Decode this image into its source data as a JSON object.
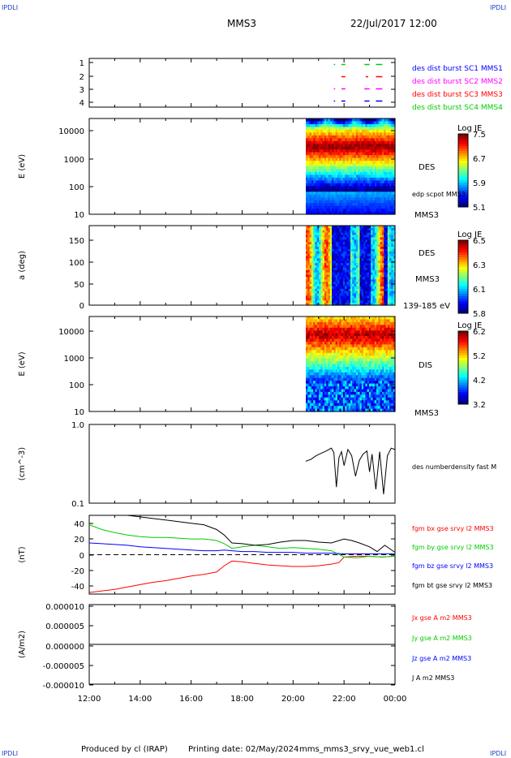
{
  "header": {
    "corner_left": "IPDLI",
    "corner_right": "IPDLI",
    "spacecraft": "MMS3",
    "datetime": "22/Jul/2017 12:00"
  },
  "footer": {
    "produced": "Produced by cl (IRAP)",
    "printing": "Printing date: 02/May/2024",
    "script": "mms_mms3_srvy_vue_web1.cl",
    "corner_left": "IPDLI",
    "corner_right": "IPDLI"
  },
  "x_axis": {
    "ticks": [
      "12:00",
      "14:00",
      "16:00",
      "18:00",
      "20:00",
      "22:00",
      "00:00"
    ]
  },
  "colors": {
    "blue": "#0000ff",
    "magenta": "#ff00ff",
    "red": "#ff0000",
    "green": "#00cc00",
    "black": "#000000"
  },
  "chart_data": [
    {
      "type": "scatter",
      "ylim": [
        0.5,
        4.5
      ],
      "yticks": [
        "1",
        "2",
        "3",
        "4"
      ],
      "legend": [
        {
          "label": "des dist burst SC1 MMS1",
          "color": "#0000ff"
        },
        {
          "label": "des dist burst SC2 MMS2",
          "color": "#ff00ff"
        },
        {
          "label": "des dist burst SC3 MMS3",
          "color": "#ff0000"
        },
        {
          "label": "des dist burst SC4 MMS4",
          "color": "#00cc00"
        }
      ],
      "intervals": [
        {
          "y": 4,
          "color": "#00cc00",
          "ranges": [
            [
              21.6,
              21.65
            ],
            [
              21.9,
              22.05
            ],
            [
              22.8,
              23.0
            ],
            [
              23.25,
              23.5
            ]
          ]
        },
        {
          "y": 3,
          "color": "#ff0000",
          "ranges": [
            [
              21.9,
              22.05
            ],
            [
              22.85,
              22.95
            ],
            [
              23.25,
              23.5
            ]
          ]
        },
        {
          "y": 2,
          "color": "#ff00ff",
          "ranges": [
            [
              21.6,
              21.65
            ],
            [
              21.9,
              22.05
            ],
            [
              22.8,
              23.0
            ],
            [
              23.25,
              23.5
            ]
          ]
        },
        {
          "y": 1,
          "color": "#0000ff",
          "ranges": [
            [
              21.6,
              21.65
            ],
            [
              21.9,
              22.05
            ],
            [
              22.8,
              23.0
            ],
            [
              23.25,
              23.5
            ]
          ]
        }
      ]
    },
    {
      "type": "heatmap",
      "ylabel": "E (eV)",
      "yscale": "log",
      "ylim": [
        10,
        30000
      ],
      "yticks": [
        "10",
        "100",
        "1000",
        "10000"
      ],
      "x_range": [
        20.5,
        24.0
      ],
      "colorbar": {
        "title": "Log JE",
        "ticks": [
          "7.5",
          "6.7",
          "5.9",
          "5.1"
        ],
        "range": [
          5.1,
          7.5
        ]
      },
      "labels": [
        "DES",
        "edp scpot MMS3",
        "MMS3"
      ]
    },
    {
      "type": "heatmap",
      "ylabel": "a (deg)",
      "ylim": [
        0,
        180
      ],
      "yticks": [
        "0",
        "50",
        "100",
        "150"
      ],
      "x_range": [
        20.5,
        24.0
      ],
      "colorbar": {
        "title": "Log JE",
        "ticks": [
          "6.5",
          "6.3",
          "6.1",
          "5.8"
        ],
        "range": [
          5.8,
          6.5
        ]
      },
      "labels": [
        "DES",
        "MMS3",
        "139-185 eV"
      ]
    },
    {
      "type": "heatmap",
      "ylabel": "E (eV)",
      "yscale": "log",
      "ylim": [
        10,
        30000
      ],
      "yticks": [
        "10",
        "100",
        "1000",
        "10000"
      ],
      "x_range": [
        20.5,
        24.0
      ],
      "colorbar": {
        "title": "Log JE",
        "ticks": [
          "6.2",
          "5.2",
          "4.2",
          "3.2"
        ],
        "range": [
          3.2,
          6.2
        ]
      },
      "labels": [
        "DIS",
        "MMS3"
      ]
    },
    {
      "type": "line",
      "ylabel": "(cm^-3)",
      "yscale": "log",
      "ylim": [
        0.1,
        1.0
      ],
      "yticks": [
        "0.1",
        "1.0"
      ],
      "series": [
        {
          "name": "des numberdensity fast M",
          "color": "#000000",
          "x": [
            20.5,
            20.7,
            20.9,
            21.1,
            21.3,
            21.5,
            21.6,
            21.7,
            21.8,
            21.9,
            22.0,
            22.15,
            22.3,
            22.45,
            22.6,
            22.75,
            22.9,
            23.0,
            23.1,
            23.25,
            23.4,
            23.55,
            23.7,
            23.85,
            24.0
          ],
          "y": [
            0.34,
            0.36,
            0.4,
            0.43,
            0.46,
            0.5,
            0.44,
            0.16,
            0.38,
            0.45,
            0.3,
            0.48,
            0.4,
            0.22,
            0.35,
            0.42,
            0.46,
            0.25,
            0.42,
            0.15,
            0.45,
            0.13,
            0.4,
            0.5,
            0.48
          ]
        }
      ]
    },
    {
      "type": "line",
      "ylabel": "(nT)",
      "ylim": [
        -50,
        50
      ],
      "yticks": [
        "40",
        "20",
        "0",
        "-20",
        "-40"
      ],
      "series": [
        {
          "name": "fgm bx gse srvy l2 MMS3",
          "color": "#ff0000",
          "x": [
            12,
            12.5,
            13,
            13.5,
            14,
            14.5,
            15,
            15.5,
            16,
            16.5,
            17,
            17.3,
            17.6,
            18,
            18.5,
            19,
            19.5,
            20,
            20.5,
            21,
            21.5,
            21.8,
            22,
            22.5,
            23,
            23.5,
            24
          ],
          "y": [
            -48,
            -46,
            -44,
            -41,
            -38,
            -35,
            -33,
            -30,
            -27,
            -25,
            -22,
            -14,
            -8,
            -9,
            -11,
            -13,
            -14,
            -15,
            -15,
            -14,
            -12,
            -10,
            -3,
            -2,
            -2,
            -3,
            -2
          ]
        },
        {
          "name": "fgm by gse srvy l2 MMS3",
          "color": "#00cc00",
          "x": [
            12,
            12.5,
            13,
            13.5,
            14,
            14.5,
            15,
            15.5,
            16,
            16.5,
            17,
            17.3,
            17.6,
            18,
            18.5,
            19,
            19.5,
            20,
            20.5,
            21,
            21.5,
            22,
            22.5,
            23,
            23.5,
            24
          ],
          "y": [
            38,
            32,
            28,
            25,
            23,
            22,
            22,
            21,
            20,
            20,
            18,
            14,
            8,
            10,
            12,
            10,
            8,
            9,
            8,
            7,
            5,
            -3,
            -4,
            -2,
            -3,
            -2
          ]
        },
        {
          "name": "fgm bz gse srvy l2 MMS3",
          "color": "#0000ff",
          "x": [
            12,
            12.5,
            13,
            13.5,
            14,
            14.5,
            15,
            15.5,
            16,
            16.5,
            17,
            17.3,
            17.6,
            18,
            18.5,
            19,
            19.5,
            20,
            20.5,
            21,
            21.5,
            22,
            22.5,
            23,
            23.5,
            24
          ],
          "y": [
            15,
            14,
            13,
            12,
            10,
            9,
            8,
            7,
            6,
            5,
            5,
            6,
            5,
            4,
            4,
            3,
            3,
            3,
            2,
            2,
            2,
            1,
            1,
            1,
            1,
            1
          ]
        },
        {
          "name": "fgm bt gse srvy l2 MMS3",
          "color": "#000000",
          "x": [
            13.5,
            14,
            14.5,
            15,
            15.5,
            16,
            16.5,
            17,
            17.3,
            17.6,
            18,
            18.5,
            19,
            19.5,
            20,
            20.5,
            21,
            21.5,
            22,
            22.3,
            22.6,
            23,
            23.3,
            23.6,
            24
          ],
          "y": [
            50,
            48,
            46,
            44,
            42,
            40,
            38,
            32,
            25,
            15,
            14,
            12,
            13,
            16,
            18,
            18,
            16,
            15,
            20,
            18,
            15,
            10,
            4,
            12,
            3
          ]
        }
      ]
    },
    {
      "type": "line",
      "ylabel": "(A/m2)",
      "ylim": [
        -1e-05,
        1e-05
      ],
      "yticks": [
        "0.000010",
        "0.000005",
        "0.000000",
        "-0.000005",
        "-0.000010"
      ],
      "series": [
        {
          "name": "Jx gse A m2 MMS3",
          "color": "#ff0000",
          "x": [
            12,
            24
          ],
          "y": [
            0,
            0
          ]
        },
        {
          "name": "Jy gse A m2 MMS3",
          "color": "#00cc00",
          "x": [
            12,
            24
          ],
          "y": [
            0,
            0
          ]
        },
        {
          "name": "Jz gse A m2 MMS3",
          "color": "#0000ff",
          "x": [
            12,
            24
          ],
          "y": [
            0,
            0
          ]
        },
        {
          "name": "J A m2 MMS3",
          "color": "#000000",
          "x": [
            12,
            24
          ],
          "y": [
            0,
            0
          ]
        }
      ]
    }
  ]
}
